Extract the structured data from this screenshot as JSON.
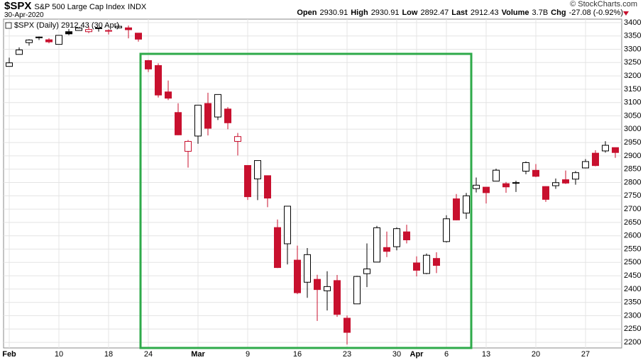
{
  "header": {
    "symbol": "$SPX",
    "name": "S&P 500 Large Cap Index",
    "exchange": "INDX",
    "date": "30-Apr-2020",
    "open_label": "Open",
    "open": "2930.91",
    "high_label": "High",
    "high": "2930.91",
    "low_label": "Low",
    "low": "2892.47",
    "last_label": "Last",
    "last": "2912.43",
    "volume_label": "Volume",
    "volume": "3.7B",
    "chg_label": "Chg",
    "chg": "-27.08 (-0.92%)",
    "copyright": "© StockCharts.com"
  },
  "chart_data": {
    "type": "candlestick",
    "legend": "$SPX (Daily) 2912.43 (30 Apr)",
    "categories": [
      "Feb",
      null,
      null,
      null,
      null,
      "10",
      null,
      null,
      null,
      null,
      "18",
      null,
      null,
      null,
      "24",
      null,
      null,
      null,
      null,
      "Mar",
      null,
      null,
      null,
      null,
      "9",
      null,
      null,
      null,
      null,
      "16",
      null,
      null,
      null,
      null,
      "23",
      null,
      null,
      null,
      null,
      "30",
      null,
      "Apr",
      null,
      null,
      "6",
      null,
      null,
      null,
      "13",
      null,
      null,
      null,
      null,
      "20",
      null,
      null,
      null,
      null,
      "27",
      null,
      null,
      null
    ],
    "bold_categories": [
      "Feb",
      "Mar",
      "Apr"
    ],
    "series": [
      {
        "name": "$SPX",
        "open": [
          3235.66,
          3280.61,
          3324.91,
          3344.92,
          3335.54,
          3318.28,
          3365.87,
          3370.5,
          3365.9,
          3378.08,
          3369.04,
          3380.39,
          3380.45,
          3360.5,
          3257.61,
          3238.94,
          3139.9,
          3062.54,
          2916.9,
          2974.28,
          3096.46,
          3045.75,
          3075.7,
          2954.2,
          2863.89,
          2813.48,
          2825.6,
          2630.86,
          2569.99,
          2508.59,
          2425.66,
          2436.5,
          2393.48,
          2431.94,
          2290.71,
          2344.44,
          2457.77,
          2501.29,
          2555.87,
          2558.98,
          2614.69,
          2498.08,
          2458.54,
          2514.92,
          2578.28,
          2738.65,
          2685.0,
          2776.99,
          2782.46,
          2805.1,
          2795.64,
          2799.34,
          2842.43,
          2845.62,
          2784.81,
          2787.89,
          2810.42,
          2812.64,
          2854.65,
          2909.96,
          2918.46,
          2930.91
        ],
        "high": [
          3268.44,
          3306.92,
          3337.58,
          3347.96,
          3341.42,
          3352.26,
          3375.63,
          3381.47,
          3385.09,
          3380.69,
          3375.01,
          3393.52,
          3389.15,
          3360.76,
          3259.81,
          3246.99,
          3182.51,
          3097.07,
          2959.72,
          3090.96,
          3136.72,
          3130.97,
          3083.04,
          2985.93,
          2863.89,
          2882.59,
          2825.6,
          2660.95,
          2711.33,
          2562.98,
          2553.93,
          2453.57,
          2466.97,
          2453.01,
          2300.73,
          2449.71,
          2571.42,
          2637.01,
          2615.91,
          2631.8,
          2641.39,
          2522.75,
          2533.22,
          2538.18,
          2676.85,
          2756.89,
          2760.75,
          2818.57,
          2782.46,
          2851.85,
          2801.88,
          2806.51,
          2879.22,
          2868.98,
          2785.54,
          2815.1,
          2844.9,
          2842.71,
          2887.72,
          2921.15,
          2954.86,
          2930.91
        ],
        "low": [
          3235.66,
          3280.61,
          3313.75,
          3334.39,
          3322.12,
          3317.77,
          3352.72,
          3369.72,
          3360.52,
          3366.15,
          3355.61,
          3378.83,
          3341.02,
          3328.45,
          3214.65,
          3118.77,
          3108.99,
          2977.39,
          2855.84,
          2945.19,
          2976.63,
          3034.38,
          2999.83,
          2901.54,
          2734.43,
          2734.0,
          2707.22,
          2478.86,
          2492.37,
          2380.94,
          2367.04,
          2280.52,
          2319.78,
          2295.56,
          2191.86,
          2344.44,
          2407.53,
          2500.72,
          2520.02,
          2545.28,
          2571.15,
          2447.49,
          2455.79,
          2459.96,
          2574.57,
          2657.67,
          2663.3,
          2762.36,
          2721.17,
          2805.1,
          2761.54,
          2764.32,
          2830.88,
          2820.43,
          2727.1,
          2775.95,
          2794.26,
          2791.76,
          2852.89,
          2860.71,
          2912.16,
          2892.47
        ],
        "close": [
          3248.92,
          3297.59,
          3334.69,
          3345.78,
          3327.71,
          3352.09,
          3357.75,
          3379.45,
          3373.94,
          3380.16,
          3370.29,
          3386.15,
          3373.23,
          3337.75,
          3225.89,
          3128.21,
          3116.39,
          2978.76,
          2954.22,
          3090.23,
          3003.37,
          3130.12,
          3023.94,
          2972.37,
          2746.56,
          2882.23,
          2741.38,
          2480.64,
          2711.02,
          2386.13,
          2529.19,
          2398.1,
          2409.39,
          2304.92,
          2237.4,
          2447.33,
          2475.56,
          2630.07,
          2541.47,
          2626.65,
          2584.59,
          2470.5,
          2526.9,
          2488.65,
          2663.68,
          2659.41,
          2749.98,
          2789.82,
          2761.63,
          2846.06,
          2783.36,
          2799.55,
          2874.56,
          2823.16,
          2736.56,
          2799.31,
          2797.8,
          2836.74,
          2878.48,
          2863.39,
          2939.51,
          2912.43
        ]
      }
    ],
    "up_color": "#000000",
    "down_color": "#c8102e",
    "ylim": [
      2179,
      3413
    ],
    "yticks": [
      2200,
      2250,
      2300,
      2350,
      2400,
      2450,
      2500,
      2550,
      2600,
      2650,
      2700,
      2750,
      2800,
      2850,
      2900,
      2950,
      3000,
      3050,
      3100,
      3150,
      3200,
      3250,
      3300,
      3350,
      3400
    ],
    "grid": true
  }
}
